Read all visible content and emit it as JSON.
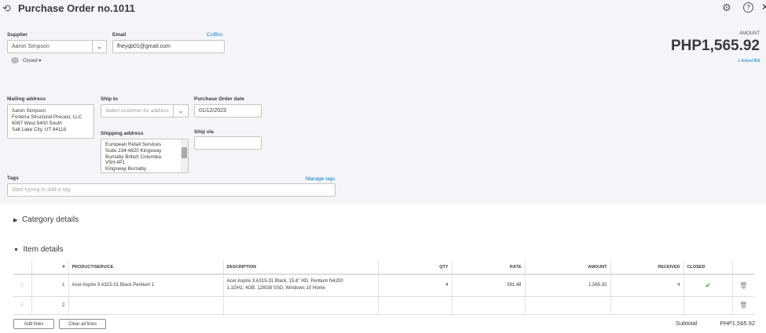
{
  "header": {
    "title": "Purchase Order no.1011",
    "icons": [
      "history-icon",
      "gear-icon",
      "help-icon",
      "close-icon"
    ]
  },
  "supplier": {
    "label": "Supplier",
    "value": "Aaron Simpson"
  },
  "email": {
    "label": "Email",
    "value": "fheyqb01@gmail.com",
    "cc_bcc": "Cc/Bcc"
  },
  "status": {
    "label": "Closed ▾"
  },
  "amount": {
    "label": "AMOUNT",
    "value": "PHP1,565.92",
    "linked": "1 linked Bill"
  },
  "mailing": {
    "label": "Mailing address",
    "lines": [
      "Aaron Simpson",
      "Forterra Structural Precast, LLC",
      "6087 West 5400 South",
      "Salt Lake City, UT  84118"
    ]
  },
  "ship_to": {
    "label": "Ship to",
    "placeholder": "Select customer for address"
  },
  "po_date": {
    "label": "Purchase Order date",
    "value": "01/12/2023"
  },
  "shipping": {
    "label": "Shipping address",
    "lines": [
      "European Retail Services",
      "Suite 234-4820 Kingsway",
      "Burnaby British Columbia",
      "V5H 4P1",
      "Kingsway Burnaby"
    ]
  },
  "ship_via": {
    "label": "Ship via",
    "value": ""
  },
  "tags": {
    "label": "Tags",
    "manage": "Manage tags",
    "placeholder": "Start typing to add a tag"
  },
  "sections": {
    "category": "Category details",
    "item": "Item details"
  },
  "table": {
    "headers": [
      "#",
      "PRODUCT/SERVICE",
      "DESCRIPTION",
      "QTY",
      "RATE",
      "AMOUNT",
      "RECEIVED",
      "CLOSED"
    ],
    "rows": [
      {
        "num": "1",
        "product": "Acer Aspire 3 A315-31 Black Pentium 1",
        "desc1": "Acer Aspire 3 A315-31 Black, 15.6\" HD, Pentium N4200",
        "desc2": "1.1GHz, 4GB, 128GB SSD, Windows 10 Home",
        "qty": "4",
        "rate": "391.48",
        "amount": "1,565.92",
        "received": "4",
        "closed": true
      },
      {
        "num": "2",
        "product": "",
        "desc1": "",
        "desc2": "",
        "qty": "",
        "rate": "",
        "amount": "",
        "received": "",
        "closed": false
      }
    ]
  },
  "footer": {
    "add_lines": "Add lines",
    "clear_lines": "Clear all lines",
    "subtotal_label": "Subtotal",
    "subtotal_value": "PHP1,565.92"
  },
  "colors": {
    "link": "#0077c5",
    "check": "#2ca01c"
  }
}
